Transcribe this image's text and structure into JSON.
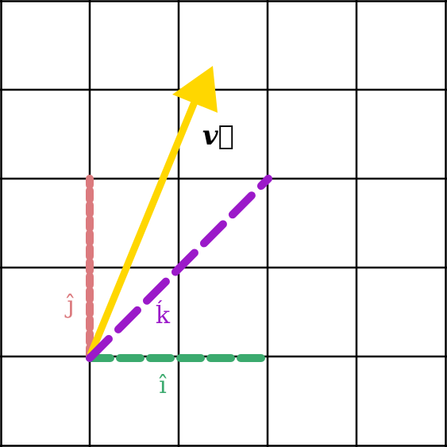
{
  "diagram": {
    "grid": {
      "rows": 5,
      "cols": 5,
      "line_color": "#000000",
      "background": "#ffffff"
    },
    "vectors": [
      {
        "id": "v",
        "label": "v⃗",
        "color": "#FFD700",
        "style": "solid-arrow"
      },
      {
        "id": "i_hat",
        "label": "î",
        "color": "#3BAA6E",
        "style": "dashed"
      },
      {
        "id": "j_hat",
        "label": "ĵ",
        "color": "#DB7A7E",
        "style": "dashed"
      },
      {
        "id": "k_hat",
        "label": "ḱ",
        "color": "#9B19C9",
        "style": "dashed"
      }
    ]
  }
}
